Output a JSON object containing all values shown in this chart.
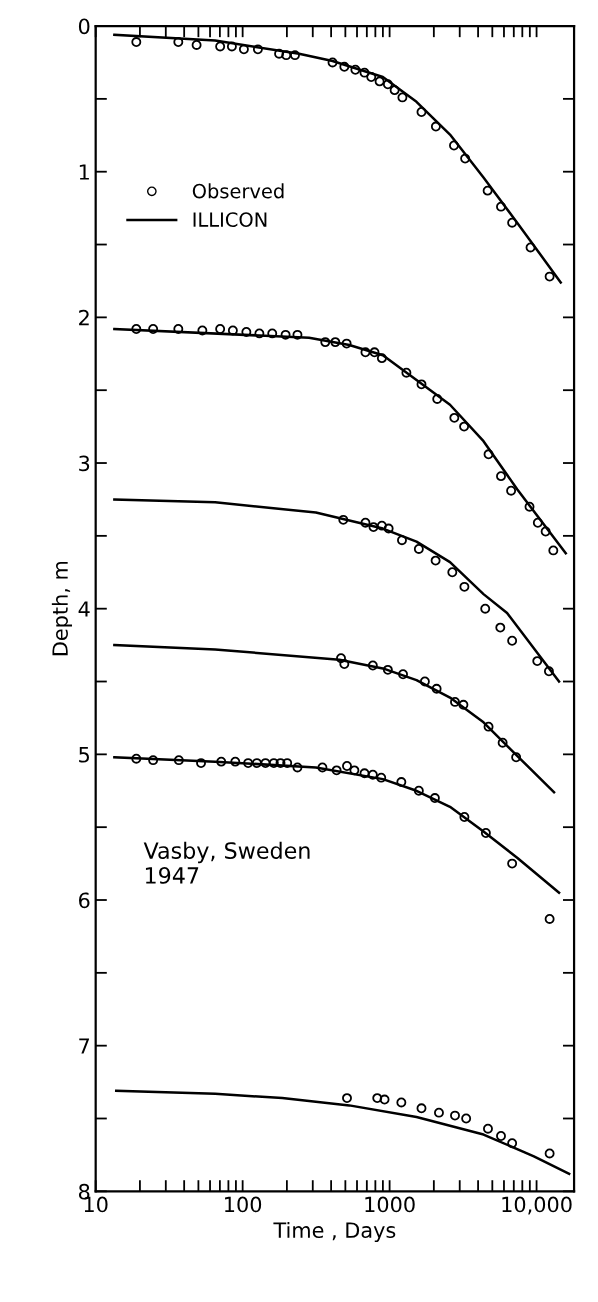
{
  "chart_data": {
    "type": "scatter",
    "xlabel": "Time , Days",
    "ylabel": "Depth, m",
    "log": "x",
    "grid": false,
    "legend": "top left",
    "xlim": [
      10,
      18000
    ],
    "ylim": [
      8,
      0
    ],
    "xticks": [
      {
        "value": 10,
        "label": "10"
      },
      {
        "value": 20,
        "label": null
      },
      {
        "value": 30,
        "label": null
      },
      {
        "value": 40,
        "label": null
      },
      {
        "value": 50,
        "label": null
      },
      {
        "value": 60,
        "label": null
      },
      {
        "value": 70,
        "label": null
      },
      {
        "value": 80,
        "label": null
      },
      {
        "value": 90,
        "label": null
      },
      {
        "value": 100,
        "label": "100"
      },
      {
        "value": 200,
        "label": null
      },
      {
        "value": 300,
        "label": null
      },
      {
        "value": 400,
        "label": null
      },
      {
        "value": 500,
        "label": null
      },
      {
        "value": 600,
        "label": null
      },
      {
        "value": 700,
        "label": null
      },
      {
        "value": 800,
        "label": null
      },
      {
        "value": 900,
        "label": null
      },
      {
        "value": 1000,
        "label": "1000"
      },
      {
        "value": 2000,
        "label": null
      },
      {
        "value": 3000,
        "label": null
      },
      {
        "value": 4000,
        "label": null
      },
      {
        "value": 5000,
        "label": null
      },
      {
        "value": 6000,
        "label": null
      },
      {
        "value": 7000,
        "label": null
      },
      {
        "value": 8000,
        "label": null
      },
      {
        "value": 9000,
        "label": null
      },
      {
        "value": 10000,
        "label": "10,000"
      }
    ],
    "yticks": [
      0,
      {
        "value": 0.5,
        "label": null
      },
      1,
      {
        "value": 1.5,
        "label": null
      },
      2,
      {
        "value": 2.5,
        "label": null
      },
      3,
      {
        "value": 3.5,
        "label": null
      },
      4,
      {
        "value": 4.5,
        "label": null
      },
      5,
      {
        "value": 5.5,
        "label": null
      },
      6,
      {
        "value": 6.5,
        "label": null
      },
      7,
      {
        "value": 7.5,
        "label": null
      },
      8
    ],
    "annotations": [
      "Vasby, Sweden\n1947"
    ],
    "series": [
      {
        "name": "Observed",
        "marker": "circle",
        "color": "#000000",
        "x": [
          18.9,
          36.5,
          48.6,
          70.3,
          84.5,
          102,
          127,
          177,
          198,
          227,
          409,
          492,
          585,
          675,
          750,
          855,
          973,
          1082,
          1222,
          1648,
          2065,
          2742,
          3266,
          4645,
          5728,
          6820,
          9100,
          12270
        ],
        "values": [
          0.11,
          0.11,
          0.13,
          0.14,
          0.14,
          0.16,
          0.16,
          0.19,
          0.2,
          0.2,
          0.25,
          0.28,
          0.3,
          0.32,
          0.35,
          0.38,
          0.4,
          0.44,
          0.49,
          0.59,
          0.69,
          0.82,
          0.91,
          1.13,
          1.24,
          1.35,
          1.52,
          1.72
        ]
      },
      {
        "name": "ILLICON",
        "type": "line",
        "line_style": "solid",
        "color": "#000000",
        "x": [
          13.4,
          65,
          242,
          409,
          900,
          1524,
          2576,
          4355,
          7379,
          14600
        ],
        "values": [
          0.06,
          0.1,
          0.19,
          0.24,
          0.35,
          0.52,
          0.745,
          1.04,
          1.35,
          1.76
        ]
      },
      {
        "marker": "circle",
        "color": "#000000",
        "x": [
          18.9,
          24.6,
          36.5,
          53.2,
          70.3,
          85.8,
          106,
          130,
          159,
          196,
          236,
          365,
          427,
          510,
          685,
          789,
          886,
          1301,
          1648,
          2109,
          2757,
          3213,
          4713,
          5728,
          6710,
          8955,
          10200,
          11530,
          13000
        ],
        "values": [
          2.08,
          2.08,
          2.08,
          2.09,
          2.08,
          2.09,
          2.1,
          2.11,
          2.11,
          2.12,
          2.12,
          2.17,
          2.17,
          2.18,
          2.24,
          2.24,
          2.28,
          2.38,
          2.46,
          2.56,
          2.69,
          2.75,
          2.94,
          3.09,
          3.19,
          3.3,
          3.41,
          3.47,
          3.6
        ]
      },
      {
        "type": "line",
        "line_style": "solid",
        "color": "#000000",
        "x": [
          13.4,
          283,
          532,
          900,
          1524,
          2576,
          4355,
          7379,
          15800
        ],
        "values": [
          2.08,
          2.14,
          2.19,
          2.26,
          2.43,
          2.6,
          2.85,
          3.18,
          3.62
        ]
      },
      {
        "marker": "circle",
        "color": "#000000",
        "x": [
          484,
          685,
          777,
          886,
          985,
          1214,
          1581,
          2056,
          2671,
          3228,
          4474,
          5665,
          6820,
          10110,
          12140
        ],
        "values": [
          3.39,
          3.41,
          3.44,
          3.43,
          3.45,
          3.53,
          3.59,
          3.67,
          3.75,
          3.85,
          4.0,
          4.13,
          4.22,
          4.36,
          4.43
        ]
      },
      {
        "type": "line",
        "line_style": "solid",
        "color": "#000000",
        "x": [
          13.4,
          65,
          315,
          900,
          1524,
          2576,
          4355,
          6300,
          14220
        ],
        "values": [
          3.25,
          3.27,
          3.34,
          3.45,
          3.54,
          3.68,
          3.9,
          4.03,
          4.5
        ]
      },
      {
        "marker": "circle",
        "color": "#000000",
        "x": [
          467,
          492,
          769,
          973,
          1234,
          1738,
          2089,
          2786,
          3178,
          4713,
          5877,
          7262
        ],
        "values": [
          4.34,
          4.38,
          4.39,
          4.42,
          4.45,
          4.5,
          4.55,
          4.64,
          4.66,
          4.81,
          4.92,
          5.02
        ]
      },
      {
        "type": "line",
        "line_style": "solid",
        "color": "#000000",
        "x": [
          13.4,
          65,
          455,
          900,
          1524,
          2576,
          4355,
          7379,
          13150
        ],
        "values": [
          4.25,
          4.28,
          4.35,
          4.41,
          4.49,
          4.61,
          4.78,
          5.01,
          5.26
        ]
      },
      {
        "marker": "circle",
        "color": "#000000",
        "x": [
          18.9,
          24.6,
          36.8,
          52.1,
          71.5,
          89.1,
          109,
          125,
          143,
          163,
          181,
          201,
          236,
          349,
          436,
          513,
          576,
          675,
          769,
          877,
          1202,
          1581,
          2033,
          3228,
          4520,
          6820,
          12270
        ],
        "values": [
          5.03,
          5.04,
          5.04,
          5.06,
          5.05,
          5.05,
          5.06,
          5.06,
          5.06,
          5.06,
          5.06,
          5.06,
          5.09,
          5.09,
          5.11,
          5.08,
          5.11,
          5.13,
          5.14,
          5.16,
          5.19,
          5.25,
          5.3,
          5.43,
          5.54,
          5.75,
          6.13
        ]
      },
      {
        "type": "line",
        "line_style": "solid",
        "color": "#000000",
        "x": [
          13.4,
          65,
          315,
          900,
          1524,
          2576,
          4355,
          7379,
          14220
        ],
        "values": [
          5.02,
          5.05,
          5.09,
          5.17,
          5.25,
          5.36,
          5.53,
          5.71,
          5.95
        ]
      },
      {
        "marker": "circle",
        "color": "#000000",
        "x": [
          513,
          824,
          924,
          1202,
          1648,
          2167,
          2786,
          3318,
          4670,
          5728,
          6820,
          12270
        ],
        "values": [
          7.36,
          7.36,
          7.37,
          7.39,
          7.43,
          7.46,
          7.48,
          7.5,
          7.57,
          7.62,
          7.67,
          7.74
        ]
      },
      {
        "type": "line",
        "line_style": "solid",
        "color": "#000000",
        "x": [
          13.8,
          65,
          186,
          532,
          1524,
          4355,
          9590,
          16660
        ],
        "values": [
          7.31,
          7.33,
          7.36,
          7.41,
          7.49,
          7.61,
          7.76,
          7.88
        ]
      }
    ]
  }
}
